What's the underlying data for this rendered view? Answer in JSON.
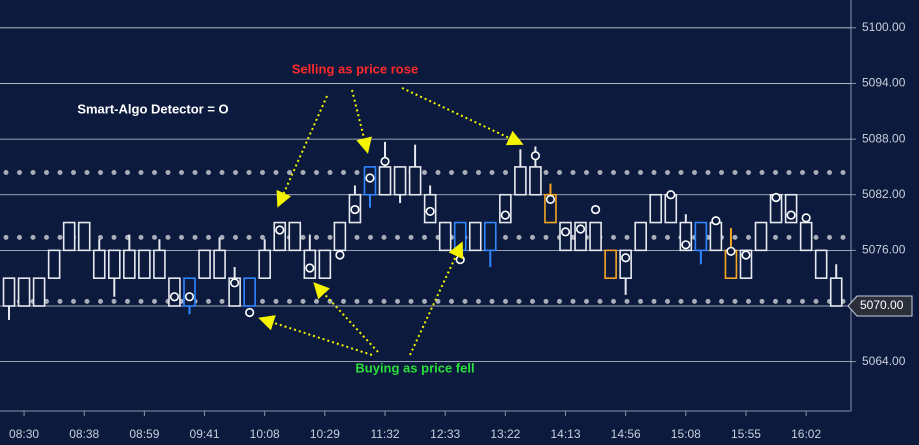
{
  "chart_data": {
    "type": "candlestick",
    "annotations": {
      "selling": "Selling as price rose",
      "buying": "Buying as price fell",
      "legend": "Smart-Algo Detector = O"
    },
    "categories": [
      null,
      "08:30",
      null,
      null,
      null,
      "08:38",
      null,
      null,
      null,
      "08:59",
      null,
      null,
      null,
      "09:41",
      null,
      null,
      null,
      "10:08",
      null,
      null,
      null,
      "10:29",
      null,
      null,
      null,
      "11:32",
      null,
      null,
      null,
      "12:33",
      null,
      null,
      null,
      "13:22",
      null,
      null,
      null,
      "14:13",
      null,
      null,
      null,
      "14:56",
      null,
      null,
      null,
      "15:08",
      null,
      null,
      null,
      "15:55",
      null,
      null,
      null,
      "16:02",
      null,
      null
    ],
    "open": [
      5070,
      5070,
      5070,
      5073,
      5076,
      5076,
      5073,
      5073,
      5073,
      5073,
      5073,
      5070,
      5070,
      5073,
      5073,
      5070,
      5070,
      5073,
      5076,
      5076,
      5073,
      5073,
      5076,
      5079,
      5082,
      5082,
      5082,
      5082,
      5079,
      5076,
      5076,
      5076,
      5076,
      5079,
      5082,
      5082,
      5079,
      5076,
      5076,
      5076,
      5073,
      5073,
      5076,
      5079,
      5079,
      5076,
      5076,
      5076,
      5073,
      5073,
      5076,
      5079,
      5079,
      5076,
      5073,
      5070
    ],
    "high": [
      5073,
      5073,
      5073,
      5076,
      5079,
      5079,
      5077.2,
      5076,
      5077.7,
      5076,
      5077.2,
      5073,
      5073,
      5076,
      5077.4,
      5074.2,
      5073,
      5077.2,
      5079,
      5079,
      5077.7,
      5076,
      5079,
      5083.0,
      5085,
      5087.7,
      5085,
      5087.4,
      5083.0,
      5079,
      5079,
      5079,
      5079,
      5082,
      5086.9,
      5087.2,
      5083.2,
      5079,
      5079,
      5079,
      5076,
      5076,
      5079,
      5082,
      5082,
      5079.9,
      5079,
      5079,
      5078.4,
      5076,
      5079,
      5082,
      5082,
      5079,
      5076,
      5074.5
    ],
    "low": [
      5068.5,
      5070,
      5070,
      5073,
      5076,
      5076,
      5073,
      5071.0,
      5073,
      5073,
      5073,
      5070,
      5069.1,
      5073,
      5073,
      5070,
      5070,
      5073,
      5076,
      5076,
      5073,
      5073,
      5076,
      5079,
      5080.6,
      5082,
      5081.1,
      5082,
      5079,
      5076,
      5076,
      5076,
      5074.2,
      5079,
      5082,
      5082,
      5079,
      5076,
      5076,
      5076,
      5073,
      5071.2,
      5076,
      5079,
      5079,
      5076,
      5074.5,
      5076,
      5073,
      5073,
      5076,
      5079,
      5079,
      5076,
      5073,
      5070
    ],
    "close": [
      5073,
      5073,
      5073,
      5076,
      5079,
      5079,
      5076,
      5076,
      5076,
      5076,
      5076,
      5073,
      5073,
      5076,
      5076,
      5073,
      5073,
      5076,
      5079,
      5079,
      5076,
      5076,
      5079,
      5082,
      5085,
      5085,
      5085,
      5085,
      5082,
      5079,
      5079,
      5079,
      5079,
      5082,
      5085,
      5085,
      5082,
      5079,
      5079,
      5079,
      5076,
      5076,
      5079,
      5082,
      5082,
      5079,
      5079,
      5079,
      5076,
      5076,
      5079,
      5082,
      5082,
      5079,
      5076,
      5073
    ],
    "candle_colors": [
      "#e6e9ef",
      "#e6e9ef",
      "#e6e9ef",
      "#e6e9ef",
      "#e6e9ef",
      "#e6e9ef",
      "#e6e9ef",
      "#e6e9ef",
      "#e6e9ef",
      "#e6e9ef",
      "#e6e9ef",
      "#e6e9ef",
      "#2f86ff",
      "#e6e9ef",
      "#e6e9ef",
      "#e6e9ef",
      "#2f86ff",
      "#e6e9ef",
      "#e6e9ef",
      "#e6e9ef",
      "#e6e9ef",
      "#e6e9ef",
      "#e6e9ef",
      "#e6e9ef",
      "#2f86ff",
      "#e6e9ef",
      "#e6e9ef",
      "#e6e9ef",
      "#e6e9ef",
      "#e6e9ef",
      "#2f86ff",
      "#e6e9ef",
      "#2f86ff",
      "#e6e9ef",
      "#e6e9ef",
      "#e6e9ef",
      "#f5a623",
      "#e6e9ef",
      "#e6e9ef",
      "#e6e9ef",
      "#f5a623",
      "#e6e9ef",
      "#e6e9ef",
      "#e6e9ef",
      "#e6e9ef",
      "#e6e9ef",
      "#2f86ff",
      "#e6e9ef",
      "#f5a623",
      "#e6e9ef",
      "#e6e9ef",
      "#e6e9ef",
      "#e6e9ef",
      "#e6e9ef",
      "#e6e9ef",
      "#e6e9ef"
    ],
    "detector": [
      null,
      null,
      null,
      null,
      null,
      null,
      null,
      null,
      null,
      null,
      null,
      5071.0,
      5071.0,
      null,
      null,
      5072.5,
      5069.3,
      null,
      5078.2,
      null,
      5074.1,
      null,
      5075.5,
      5080.4,
      5083.8,
      5085.6,
      null,
      null,
      5080.2,
      null,
      5075.0,
      null,
      null,
      5079.8,
      null,
      5086.2,
      5081.5,
      5078.0,
      5078.3,
      5080.4,
      null,
      5075.2,
      null,
      null,
      5082.0,
      5076.6,
      null,
      5079.2,
      5075.9,
      5075.5,
      null,
      5081.7,
      5079.8,
      5079.5,
      null,
      null
    ],
    "levels": [
      5084.4,
      5077.4,
      5070.5
    ],
    "current_price": {
      "value": 5070,
      "label": "5070.00"
    },
    "ylim": [
      5059,
      5103
    ],
    "yticks": [
      {
        "value": 5064,
        "label": "5064.00"
      },
      {
        "value": 5076,
        "label": "5076.00"
      },
      {
        "value": 5082,
        "label": "5082.00"
      },
      {
        "value": 5088,
        "label": "5088.00"
      },
      {
        "value": 5094,
        "label": "5094.00"
      },
      {
        "value": 5100,
        "label": "5100.00"
      }
    ],
    "grid": true
  }
}
